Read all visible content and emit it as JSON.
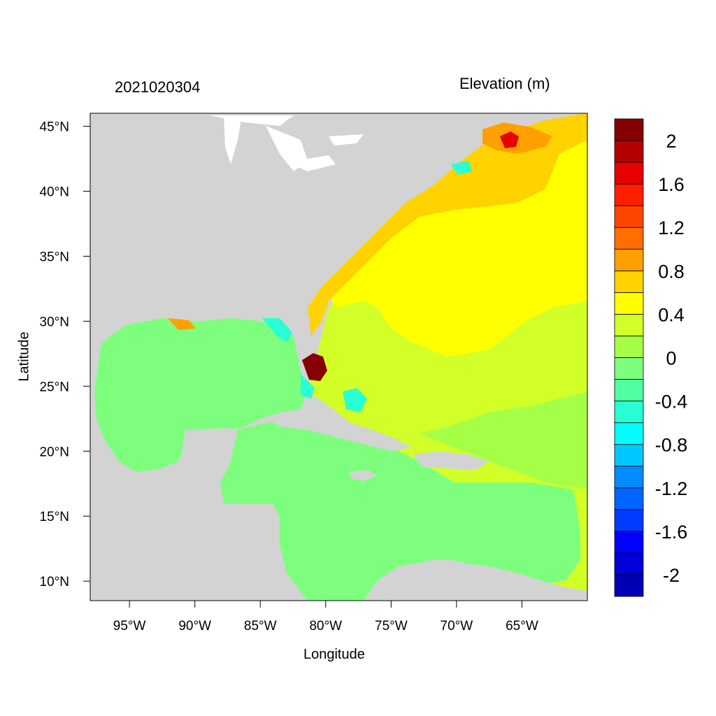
{
  "title_left": "2021020304",
  "title_right": "Elevation (m)",
  "xlabel": "Longitude",
  "ylabel": "Latitude",
  "map": {
    "lon_range": [
      -98,
      -60
    ],
    "lat_range": [
      8.5,
      46
    ],
    "lon_ticks": [
      {
        "value": -95,
        "label": "95°W"
      },
      {
        "value": -90,
        "label": "90°W"
      },
      {
        "value": -85,
        "label": "85°W"
      },
      {
        "value": -80,
        "label": "80°W"
      },
      {
        "value": -75,
        "label": "75°W"
      },
      {
        "value": -70,
        "label": "70°W"
      },
      {
        "value": -65,
        "label": "65°W"
      }
    ],
    "lat_ticks": [
      {
        "value": 45,
        "label": "45°N"
      },
      {
        "value": 40,
        "label": "40°N"
      },
      {
        "value": 35,
        "label": "35°N"
      },
      {
        "value": 30,
        "label": "30°N"
      },
      {
        "value": 25,
        "label": "25°N"
      },
      {
        "value": 20,
        "label": "20°N"
      },
      {
        "value": 15,
        "label": "15°N"
      },
      {
        "value": 10,
        "label": "10°N"
      }
    ],
    "land_color": "#d3d3d3"
  },
  "colorbar": {
    "colors": [
      "#0000b4",
      "#0000d8",
      "#0000ff",
      "#003cff",
      "#0064ff",
      "#008cff",
      "#00c8ff",
      "#00ffff",
      "#28ffd2",
      "#50ffa0",
      "#7dff7d",
      "#a5ff46",
      "#d2ff28",
      "#ffff00",
      "#ffd200",
      "#ffa000",
      "#ff6e00",
      "#ff4600",
      "#ff1e00",
      "#e60000",
      "#b40000",
      "#870000"
    ],
    "labels": [
      {
        "text": "-2",
        "value": -2
      },
      {
        "text": "-1.6",
        "value": -1.6
      },
      {
        "text": "-1.2",
        "value": -1.2
      },
      {
        "text": "-0.8",
        "value": -0.8
      },
      {
        "text": "-0.4",
        "value": -0.4
      },
      {
        "text": "0",
        "value": 0
      },
      {
        "text": "0.4",
        "value": 0.4
      },
      {
        "text": "0.8",
        "value": 0.8
      },
      {
        "text": "1.2",
        "value": 1.2
      },
      {
        "text": "1.6",
        "value": 1.6
      },
      {
        "text": "2",
        "value": 2
      }
    ]
  }
}
